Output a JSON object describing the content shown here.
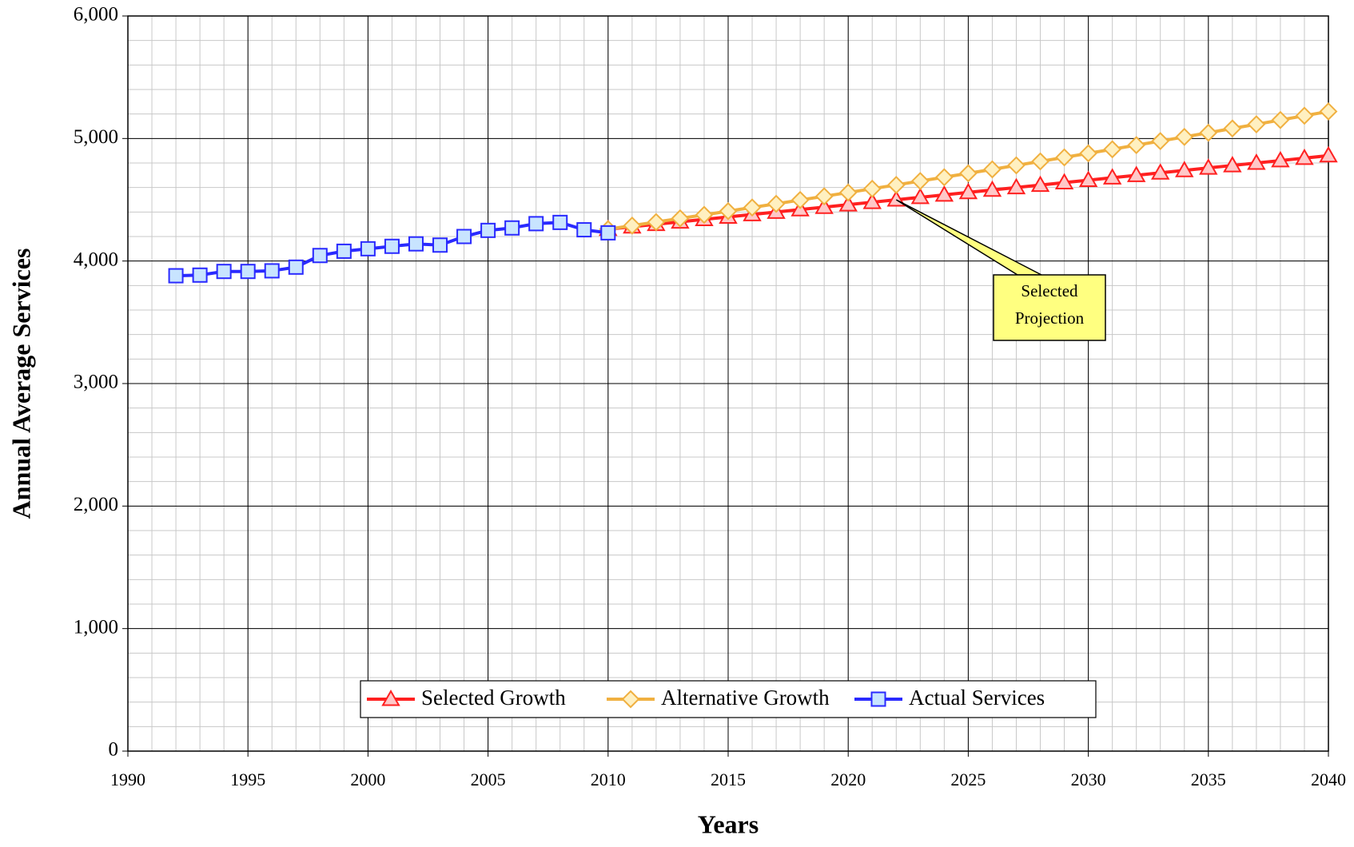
{
  "chart_data": {
    "type": "line",
    "x_label": "Years",
    "y_label": "Annual Average Services",
    "xlim": [
      1990,
      2040
    ],
    "xticks": [
      1990,
      1995,
      2000,
      2005,
      2010,
      2015,
      2020,
      2025,
      2030,
      2035,
      2040
    ],
    "ylim": [
      0,
      6000
    ],
    "yticks": [
      0,
      {
        "value": 1000,
        "label": "1,000"
      },
      {
        "value": 2000,
        "label": "2,000"
      },
      {
        "value": 3000,
        "label": "3,000"
      },
      {
        "value": 4000,
        "label": "4,000"
      },
      {
        "value": 5000,
        "label": "5,000"
      },
      {
        "value": 6000,
        "label": "6,000"
      }
    ],
    "grid": true,
    "minor_grid": {
      "x": 1,
      "y": 200
    },
    "legend": "lower center",
    "series": [
      {
        "name": "Selected Growth",
        "color": "#ff2020",
        "marker": "triangle",
        "marker_fill": "#ffc8c8",
        "x": [
          2010,
          2011,
          2012,
          2013,
          2014,
          2015,
          2016,
          2017,
          2018,
          2019,
          2020,
          2021,
          2022,
          2023,
          2024,
          2025,
          2026,
          2027,
          2028,
          2029,
          2030,
          2031,
          2032,
          2033,
          2034,
          2035,
          2036,
          2037,
          2038,
          2039,
          2040
        ],
        "values": [
          4260,
          4280,
          4300,
          4320,
          4340,
          4360,
          4380,
          4400,
          4420,
          4440,
          4460,
          4480,
          4500,
          4520,
          4540,
          4560,
          4580,
          4600,
          4620,
          4640,
          4660,
          4680,
          4700,
          4720,
          4740,
          4760,
          4780,
          4800,
          4820,
          4840,
          4860
        ]
      },
      {
        "name": "Alternative Growth",
        "color": "#f0b040",
        "marker": "diamond",
        "marker_fill": "#fff0c0",
        "x": [
          2010,
          2011,
          2012,
          2013,
          2014,
          2015,
          2016,
          2017,
          2018,
          2019,
          2020,
          2021,
          2022,
          2023,
          2024,
          2025,
          2026,
          2027,
          2028,
          2029,
          2030,
          2031,
          2032,
          2033,
          2034,
          2035,
          2036,
          2037,
          2038,
          2039,
          2040
        ],
        "values": [
          4260,
          4289,
          4318,
          4348,
          4377,
          4407,
          4437,
          4467,
          4498,
          4528,
          4559,
          4590,
          4621,
          4653,
          4684,
          4716,
          4748,
          4781,
          4813,
          4846,
          4879,
          4912,
          4946,
          4979,
          5013,
          5047,
          5082,
          5116,
          5151,
          5186,
          5221
        ]
      },
      {
        "name": "Actual Services",
        "color": "#2a2aff",
        "marker": "square",
        "marker_fill": "#c8e4ff",
        "x": [
          1992,
          1993,
          1994,
          1995,
          1996,
          1997,
          1998,
          1999,
          2000,
          2001,
          2002,
          2003,
          2004,
          2005,
          2006,
          2007,
          2008,
          2009,
          2010
        ],
        "values": [
          3880,
          3885,
          3915,
          3915,
          3920,
          3950,
          4045,
          4080,
          4100,
          4120,
          4140,
          4130,
          4200,
          4250,
          4270,
          4305,
          4315,
          4255,
          4230
        ]
      }
    ],
    "annotation": {
      "text_lines": [
        "Selected",
        "Projection"
      ],
      "x": 2022,
      "y": 4500
    }
  }
}
